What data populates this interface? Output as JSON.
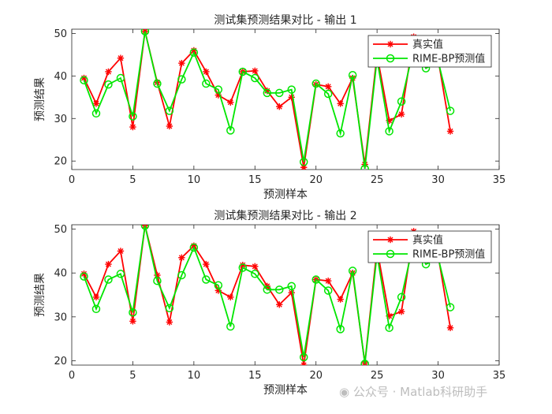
{
  "colors": {
    "true_series": "#ff0000",
    "pred_series": "#00e600",
    "axis": "#262626",
    "grid": "none",
    "watermark": "#bdbdbd"
  },
  "chart_data": [
    {
      "type": "line",
      "title": "测试集预测结果对比 - 输出 1",
      "xlabel": "预测样本",
      "ylabel": "预测结果",
      "xlim": [
        0,
        35
      ],
      "ylim": [
        18,
        51
      ],
      "xticks": [
        0,
        5,
        10,
        15,
        20,
        25,
        30,
        35
      ],
      "yticks": [
        20,
        30,
        40,
        50
      ],
      "grid": false,
      "legend_position": "top-right",
      "x": [
        1,
        2,
        3,
        4,
        5,
        6,
        7,
        8,
        9,
        10,
        11,
        12,
        13,
        14,
        15,
        16,
        17,
        18,
        19,
        20,
        21,
        22,
        23,
        24,
        25,
        26,
        27,
        28,
        29,
        30,
        31
      ],
      "series": [
        {
          "name": "真实值",
          "marker": "asterisk",
          "color": "#ff0000",
          "values": [
            39.5,
            33.5,
            41.0,
            44.2,
            28.0,
            50.5,
            38.5,
            28.2,
            43.0,
            46.0,
            41.0,
            35.5,
            33.8,
            41.0,
            41.2,
            36.5,
            32.8,
            35.0,
            18.5,
            38.0,
            37.5,
            33.5,
            39.5,
            19.2,
            45.0,
            29.5,
            31.0,
            49.2,
            43.0,
            44.0,
            27.0
          ]
        },
        {
          "name": "RIME-BP预测值",
          "marker": "circle",
          "color": "#00e600",
          "values": [
            39.0,
            31.2,
            38.0,
            39.5,
            30.5,
            50.5,
            38.2,
            31.8,
            39.2,
            45.5,
            38.2,
            36.8,
            27.2,
            41.0,
            39.5,
            36.0,
            36.0,
            36.8,
            19.8,
            38.2,
            35.8,
            26.5,
            40.2,
            18.2,
            44.0,
            27.0,
            34.0,
            46.5,
            41.8,
            43.5,
            31.8
          ]
        }
      ]
    },
    {
      "type": "line",
      "title": "测试集预测结果对比 - 输出 2",
      "xlabel": "预测样本",
      "ylabel": "预测结果",
      "xlim": [
        0,
        35
      ],
      "ylim": [
        19,
        51
      ],
      "xticks": [
        0,
        5,
        10,
        15,
        20,
        25,
        30,
        35
      ],
      "yticks": [
        20,
        30,
        40,
        50
      ],
      "grid": false,
      "legend_position": "top-right",
      "x": [
        1,
        2,
        3,
        4,
        5,
        6,
        7,
        8,
        9,
        10,
        11,
        12,
        13,
        14,
        15,
        16,
        17,
        18,
        19,
        20,
        21,
        22,
        23,
        24,
        25,
        26,
        27,
        28,
        29,
        30,
        31
      ],
      "series": [
        {
          "name": "真实值",
          "marker": "asterisk",
          "color": "#ff0000",
          "values": [
            39.8,
            34.5,
            42.0,
            45.0,
            29.0,
            50.8,
            39.5,
            28.8,
            43.5,
            46.2,
            42.0,
            36.0,
            34.5,
            41.8,
            41.5,
            37.0,
            32.8,
            35.5,
            19.0,
            38.5,
            38.2,
            34.0,
            40.0,
            19.5,
            45.5,
            30.2,
            31.2,
            49.5,
            43.5,
            44.0,
            27.5
          ]
        },
        {
          "name": "RIME-BP预测值",
          "marker": "circle",
          "color": "#00e600",
          "values": [
            39.2,
            31.8,
            38.5,
            39.8,
            31.0,
            50.8,
            38.2,
            32.0,
            39.5,
            45.8,
            38.5,
            37.2,
            27.8,
            41.2,
            39.8,
            36.2,
            36.2,
            37.0,
            20.8,
            38.5,
            36.0,
            27.2,
            40.5,
            19.3,
            44.2,
            27.5,
            34.5,
            47.0,
            42.0,
            43.5,
            32.2
          ]
        }
      ]
    }
  ],
  "watermark": {
    "text": "公众号 · Matlab科研助手"
  }
}
